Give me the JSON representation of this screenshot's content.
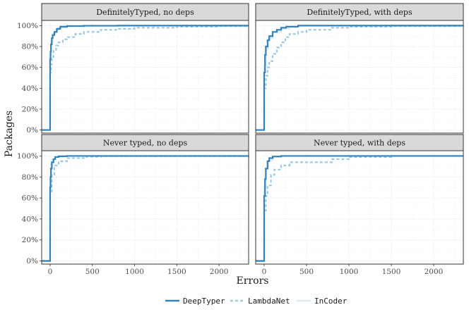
{
  "chart_data": {
    "type": "line",
    "xlabel": "Errors",
    "ylabel": "Packages",
    "xlim": [
      -100,
      2350
    ],
    "ylim": [
      -3,
      105
    ],
    "x_ticks": [
      0,
      500,
      1000,
      1500,
      2000
    ],
    "y_ticks": [
      0,
      20,
      40,
      60,
      80,
      100
    ],
    "y_tick_labels": [
      "0%",
      "20%",
      "40%",
      "60%",
      "80%",
      "100%"
    ],
    "grid": true,
    "legend_position": "bottom",
    "series_styles": [
      {
        "name": "DeepTyper",
        "color": "#3182bd",
        "dash": "none",
        "width": 2.2
      },
      {
        "name": "LambdaNet",
        "color": "#9ecae1",
        "dash": "4,3",
        "width": 2.2
      },
      {
        "name": "InCoder",
        "color": "#deebf7",
        "dash": "none",
        "width": 2.2
      }
    ],
    "panels": [
      {
        "title": "DefinitelyTyped, no deps",
        "series": [
          {
            "name": "DeepTyper",
            "x": [
              -100,
              0,
              0,
              5,
              10,
              20,
              30,
              50,
              80,
              120,
              200,
              400,
              800,
              2350
            ],
            "y": [
              0,
              0,
              68,
              75,
              82,
              88,
              91,
              94,
              97,
              99,
              99.6,
              99.9,
              100,
              100
            ]
          },
          {
            "name": "LambdaNet",
            "x": [
              -100,
              0,
              0,
              10,
              20,
              40,
              70,
              100,
              150,
              200,
              300,
              400,
              600,
              800,
              1000,
              1500,
              2000,
              2350
            ],
            "y": [
              0,
              0,
              55,
              63,
              70,
              76,
              81,
              84,
              87,
              89,
              92,
              94,
              96,
              97,
              98,
              99,
              99.5,
              99.7
            ]
          },
          {
            "name": "InCoder",
            "x": [
              -100,
              -5,
              0,
              10,
              30,
              60,
              100,
              200,
              400,
              2350
            ],
            "y": [
              0,
              0,
              72,
              85,
              92,
              96,
              98,
              99.5,
              99.9,
              100
            ]
          }
        ]
      },
      {
        "title": "DefinitelyTyped, with deps",
        "series": [
          {
            "name": "DeepTyper",
            "x": [
              -100,
              0,
              0,
              10,
              20,
              40,
              60,
              100,
              150,
              200,
              260,
              400,
              2350
            ],
            "y": [
              0,
              0,
              55,
              72,
              80,
              86,
              90,
              94,
              96,
              98,
              99,
              100,
              100
            ]
          },
          {
            "name": "LambdaNet",
            "x": [
              -100,
              0,
              0,
              20,
              40,
              60,
              100,
              150,
              200,
              250,
              300,
              400,
              500,
              800,
              1000,
              1500,
              2350
            ],
            "y": [
              0,
              0,
              40,
              52,
              60,
              66,
              73,
              79,
              84,
              89,
              92,
              94,
              96,
              98,
              99,
              99.5,
              100
            ]
          },
          {
            "name": "InCoder",
            "x": [
              -100,
              -5,
              0,
              20,
              50,
              100,
              200,
              300,
              400,
              2350
            ],
            "y": [
              0,
              0,
              62,
              78,
              88,
              94,
              97,
              99,
              100,
              100
            ]
          }
        ]
      },
      {
        "title": "Never typed, no deps",
        "series": [
          {
            "name": "DeepTyper",
            "x": [
              -100,
              0,
              0,
              5,
              10,
              20,
              40,
              60,
              100,
              200,
              2350
            ],
            "y": [
              0,
              0,
              70,
              80,
              88,
              94,
              97,
              99,
              99.7,
              100,
              100
            ]
          },
          {
            "name": "LambdaNet",
            "x": [
              -100,
              0,
              0,
              20,
              50,
              100,
              200,
              400,
              600,
              2350
            ],
            "y": [
              0,
              0,
              65,
              82,
              91,
              95,
              98,
              99.3,
              99.8,
              100
            ]
          },
          {
            "name": "InCoder",
            "x": [
              -100,
              -5,
              0,
              10,
              30,
              60,
              150,
              2350
            ],
            "y": [
              0,
              0,
              80,
              92,
              97,
              99,
              100,
              100
            ]
          }
        ]
      },
      {
        "title": "Never typed, with deps",
        "series": [
          {
            "name": "DeepTyper",
            "x": [
              -100,
              0,
              0,
              10,
              20,
              40,
              60,
              100,
              200,
              2350
            ],
            "y": [
              0,
              0,
              62,
              78,
              88,
              95,
              98,
              99.5,
              100,
              100
            ]
          },
          {
            "name": "LambdaNet",
            "x": [
              -100,
              0,
              0,
              20,
              40,
              80,
              120,
              200,
              300,
              500,
              800,
              1000,
              1500,
              2350
            ],
            "y": [
              0,
              0,
              48,
              62,
              72,
              82,
              87,
              91,
              94,
              94,
              97,
              99,
              100,
              100
            ]
          },
          {
            "name": "InCoder",
            "x": [
              -100,
              -5,
              0,
              20,
              50,
              100,
              200,
              2350
            ],
            "y": [
              0,
              0,
              70,
              88,
              96,
              99,
              100,
              100
            ]
          }
        ]
      }
    ]
  }
}
